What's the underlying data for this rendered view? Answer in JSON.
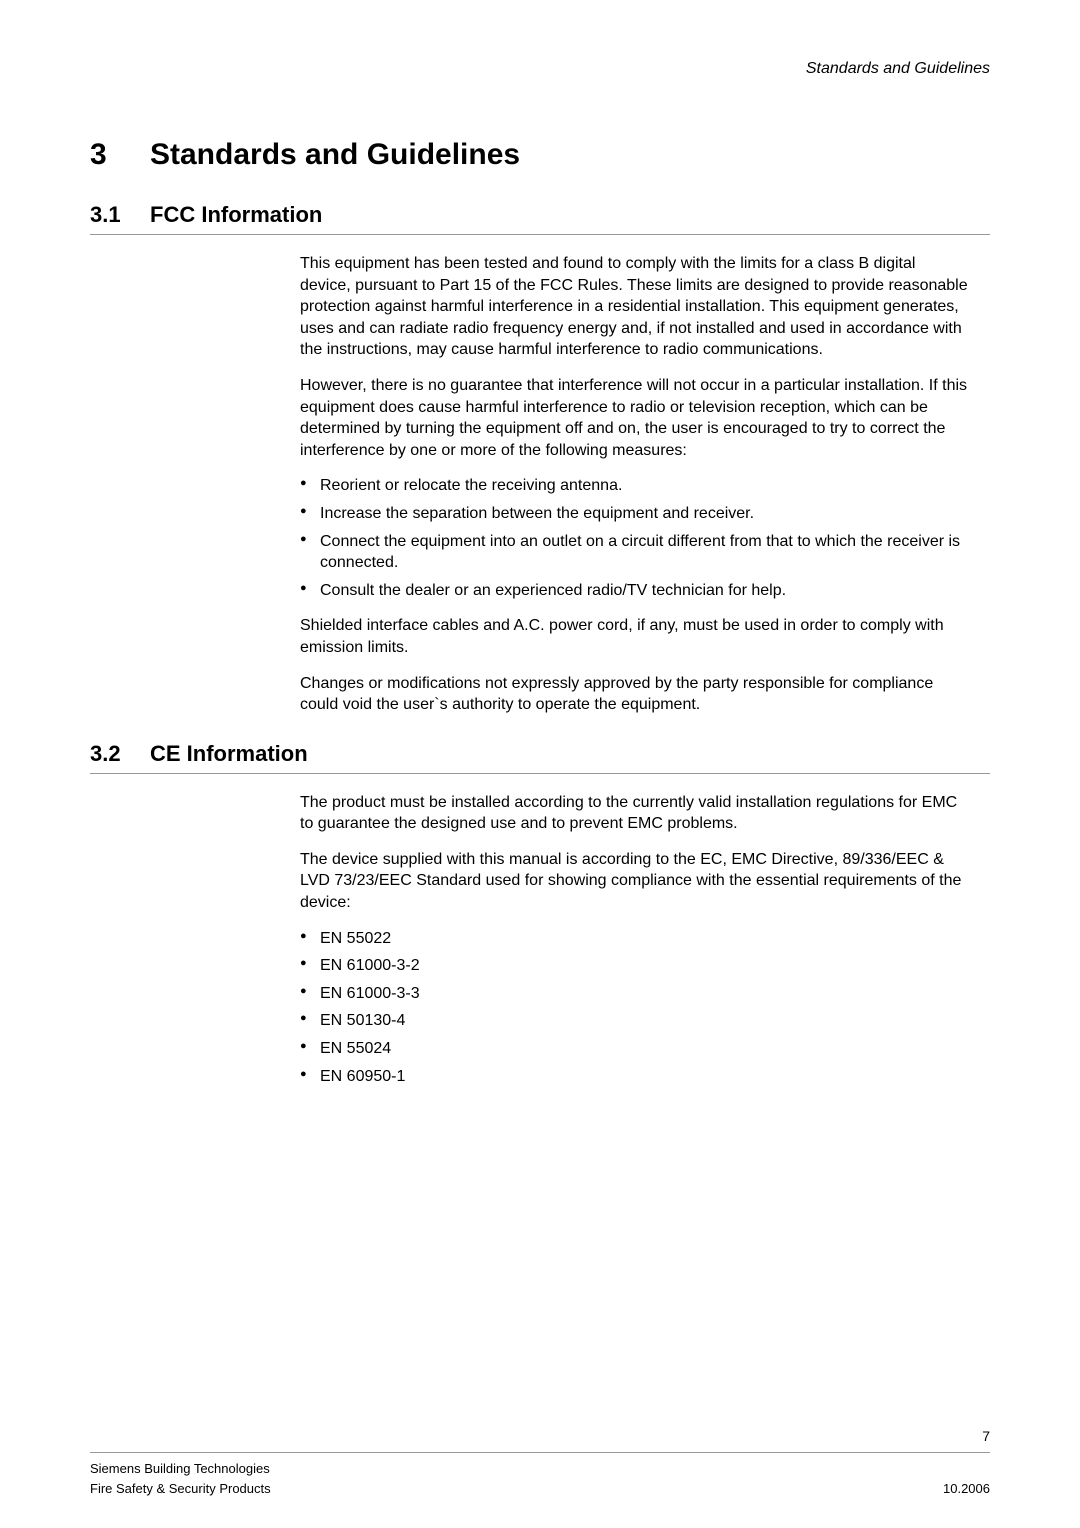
{
  "header": {
    "running_title": "Standards and Guidelines"
  },
  "chapter": {
    "number": "3",
    "title": "Standards and Guidelines"
  },
  "sections": [
    {
      "number": "3.1",
      "title": "FCC Information",
      "paragraphs": [
        "This equipment has been tested and found to comply with the limits for a class B digital device, pursuant to Part 15 of the FCC Rules. These limits are designed to provide reasonable protection against harmful interference in a residential installation. This equipment generates, uses and can radiate radio frequency energy and, if not installed and used in accordance with the instructions, may cause harmful interference to radio communications.",
        "However, there is no guarantee that interference will not occur in a particular installation. If this equipment does cause harmful interference to radio or television reception, which can be determined by turning the equipment off and on, the user is encouraged to try to correct the interference by one or more of the following measures:"
      ],
      "bullets": [
        "Reorient or relocate the receiving antenna.",
        "Increase the separation between the equipment and receiver.",
        "Connect the equipment into an outlet on a circuit different from that to which the receiver is connected.",
        "Consult the dealer or an experienced radio/TV technician for help."
      ],
      "paragraphs_after": [
        "Shielded interface cables and A.C. power cord, if any, must be used in order to comply with emission limits.",
        "Changes or modifications not expressly approved by the party responsible for compliance could void the user`s authority to operate the equipment."
      ]
    },
    {
      "number": "3.2",
      "title": "CE Information",
      "paragraphs": [
        "The product must be installed according to the currently valid installation regulations for EMC to guarantee the designed use and to prevent EMC problems.",
        "The device supplied with this manual is according to the EC, EMC Directive, 89/336/EEC & LVD 73/23/EEC Standard used for showing compliance with the essential requirements of the device:"
      ],
      "bullets": [
        "EN 55022",
        "EN 61000-3-2",
        "EN 61000-3-3",
        "EN 50130-4",
        "EN 55024",
        "EN 60950-1"
      ],
      "paragraphs_after": []
    }
  ],
  "footer": {
    "page_number": "7",
    "left_line1": "Siemens Building Technologies",
    "left_line2": "Fire Safety & Security Products",
    "right_date": "10.2006"
  }
}
